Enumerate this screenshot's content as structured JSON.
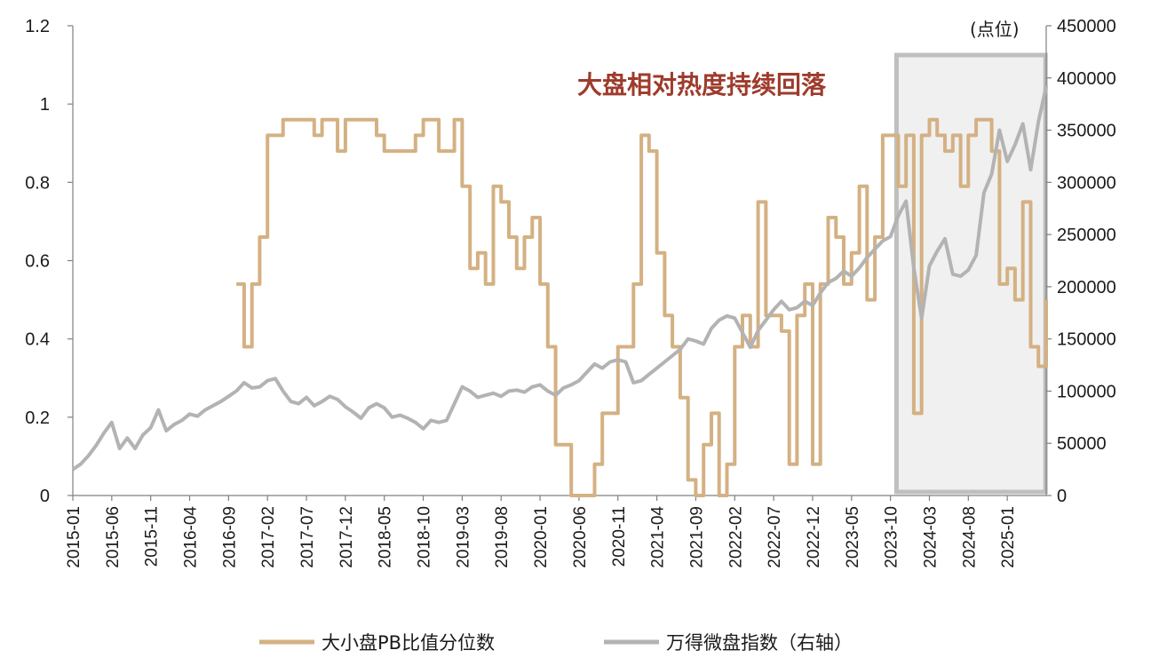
{
  "chart_data": {
    "type": "line",
    "annotation": "大盘相对热度持续回落",
    "y2_unit_label": "(点位)",
    "y_left": {
      "min": 0,
      "max": 1.2,
      "ticks": [
        "0",
        "0.2",
        "0.4",
        "0.6",
        "0.8",
        "1",
        "1.2"
      ]
    },
    "y_right": {
      "min": 0,
      "max": 450000,
      "ticks": [
        "0",
        "50000",
        "100000",
        "150000",
        "200000",
        "250000",
        "300000",
        "350000",
        "400000",
        "450000"
      ]
    },
    "x_range": [
      "2015-01",
      "2025-06"
    ],
    "x_ticks": [
      "2015-01",
      "2015-06",
      "2015-11",
      "2016-04",
      "2016-09",
      "2017-02",
      "2017-07",
      "2017-12",
      "2018-05",
      "2018-10",
      "2019-03",
      "2019-08",
      "2020-01",
      "2020-06",
      "2020-11",
      "2021-04",
      "2021-09",
      "2022-02",
      "2022-07",
      "2022-12",
      "2023-05",
      "2023-10",
      "2024-03",
      "2024-08",
      "2025-01"
    ],
    "highlight_range": [
      "2023-11",
      "2025-05"
    ],
    "colors": {
      "pb": "#d4b183",
      "micro": "#b3b3b3",
      "highlight_fill": "#f0f0f0",
      "highlight_border": "#bfbfbf",
      "annotation": "#9e3b2c"
    },
    "series": [
      {
        "name": "大小盘PB比值分位数",
        "axis": "left",
        "step": true,
        "points": [
          [
            "2016-10",
            0.54
          ],
          [
            "2016-11",
            0.38
          ],
          [
            "2016-12",
            0.54
          ],
          [
            "2017-01",
            0.66
          ],
          [
            "2017-02",
            0.92
          ],
          [
            "2017-03",
            0.92
          ],
          [
            "2017-04",
            0.96
          ],
          [
            "2017-05",
            0.96
          ],
          [
            "2017-06",
            0.96
          ],
          [
            "2017-07",
            0.96
          ],
          [
            "2017-08",
            0.92
          ],
          [
            "2017-09",
            0.96
          ],
          [
            "2017-10",
            0.96
          ],
          [
            "2017-11",
            0.88
          ],
          [
            "2017-12",
            0.96
          ],
          [
            "2018-01",
            0.96
          ],
          [
            "2018-02",
            0.96
          ],
          [
            "2018-03",
            0.96
          ],
          [
            "2018-04",
            0.92
          ],
          [
            "2018-05",
            0.88
          ],
          [
            "2018-06",
            0.88
          ],
          [
            "2018-07",
            0.88
          ],
          [
            "2018-08",
            0.88
          ],
          [
            "2018-09",
            0.92
          ],
          [
            "2018-10",
            0.96
          ],
          [
            "2018-11",
            0.96
          ],
          [
            "2018-12",
            0.88
          ],
          [
            "2019-01",
            0.88
          ],
          [
            "2019-02",
            0.96
          ],
          [
            "2019-03",
            0.79
          ],
          [
            "2019-04",
            0.58
          ],
          [
            "2019-05",
            0.62
          ],
          [
            "2019-06",
            0.54
          ],
          [
            "2019-07",
            0.79
          ],
          [
            "2019-08",
            0.75
          ],
          [
            "2019-09",
            0.66
          ],
          [
            "2019-10",
            0.58
          ],
          [
            "2019-11",
            0.66
          ],
          [
            "2019-12",
            0.71
          ],
          [
            "2020-01",
            0.54
          ],
          [
            "2020-02",
            0.38
          ],
          [
            "2020-03",
            0.13
          ],
          [
            "2020-04",
            0.13
          ],
          [
            "2020-05",
            0.0
          ],
          [
            "2020-06",
            0.0
          ],
          [
            "2020-07",
            0.0
          ],
          [
            "2020-08",
            0.08
          ],
          [
            "2020-09",
            0.21
          ],
          [
            "2020-10",
            0.21
          ],
          [
            "2020-11",
            0.38
          ],
          [
            "2020-12",
            0.38
          ],
          [
            "2021-01",
            0.54
          ],
          [
            "2021-02",
            0.92
          ],
          [
            "2021-03",
            0.88
          ],
          [
            "2021-04",
            0.62
          ],
          [
            "2021-05",
            0.46
          ],
          [
            "2021-06",
            0.38
          ],
          [
            "2021-07",
            0.25
          ],
          [
            "2021-08",
            0.04
          ],
          [
            "2021-09",
            0.0
          ],
          [
            "2021-10",
            0.13
          ],
          [
            "2021-11",
            0.21
          ],
          [
            "2021-12",
            0.0
          ],
          [
            "2022-01",
            0.08
          ],
          [
            "2022-02",
            0.38
          ],
          [
            "2022-03",
            0.46
          ],
          [
            "2022-04",
            0.38
          ],
          [
            "2022-05",
            0.75
          ],
          [
            "2022-06",
            0.46
          ],
          [
            "2022-07",
            0.46
          ],
          [
            "2022-08",
            0.42
          ],
          [
            "2022-09",
            0.08
          ],
          [
            "2022-10",
            0.46
          ],
          [
            "2022-11",
            0.54
          ],
          [
            "2022-12",
            0.08
          ],
          [
            "2023-01",
            0.54
          ],
          [
            "2023-02",
            0.71
          ],
          [
            "2023-03",
            0.66
          ],
          [
            "2023-04",
            0.54
          ],
          [
            "2023-05",
            0.62
          ],
          [
            "2023-06",
            0.79
          ],
          [
            "2023-07",
            0.5
          ],
          [
            "2023-08",
            0.66
          ],
          [
            "2023-09",
            0.92
          ],
          [
            "2023-10",
            0.92
          ],
          [
            "2023-11",
            0.79
          ],
          [
            "2023-12",
            0.92
          ],
          [
            "2024-01",
            0.21
          ],
          [
            "2024-02",
            0.92
          ],
          [
            "2024-03",
            0.96
          ],
          [
            "2024-04",
            0.92
          ],
          [
            "2024-05",
            0.88
          ],
          [
            "2024-06",
            0.92
          ],
          [
            "2024-07",
            0.79
          ],
          [
            "2024-08",
            0.92
          ],
          [
            "2024-09",
            0.96
          ],
          [
            "2024-10",
            0.96
          ],
          [
            "2024-11",
            0.88
          ],
          [
            "2024-12",
            0.54
          ],
          [
            "2025-01",
            0.58
          ],
          [
            "2025-02",
            0.5
          ],
          [
            "2025-03",
            0.75
          ],
          [
            "2025-04",
            0.38
          ],
          [
            "2025-05",
            0.33
          ],
          [
            "2025-06",
            0.5
          ]
        ]
      },
      {
        "name": "万得微盘指数（右轴）",
        "axis": "right",
        "step": false,
        "points": [
          [
            "2015-01",
            25000
          ],
          [
            "2015-02",
            30000
          ],
          [
            "2015-03",
            38000
          ],
          [
            "2015-04",
            48000
          ],
          [
            "2015-05",
            60000
          ],
          [
            "2015-06",
            70000
          ],
          [
            "2015-07",
            45000
          ],
          [
            "2015-08",
            55000
          ],
          [
            "2015-09",
            45000
          ],
          [
            "2015-10",
            58000
          ],
          [
            "2015-11",
            65000
          ],
          [
            "2015-12",
            82000
          ],
          [
            "2016-01",
            62000
          ],
          [
            "2016-02",
            68000
          ],
          [
            "2016-03",
            72000
          ],
          [
            "2016-04",
            78000
          ],
          [
            "2016-05",
            76000
          ],
          [
            "2016-06",
            82000
          ],
          [
            "2016-07",
            86000
          ],
          [
            "2016-08",
            90000
          ],
          [
            "2016-09",
            95000
          ],
          [
            "2016-10",
            100000
          ],
          [
            "2016-11",
            108000
          ],
          [
            "2016-12",
            103000
          ],
          [
            "2017-01",
            104000
          ],
          [
            "2017-02",
            110000
          ],
          [
            "2017-03",
            112000
          ],
          [
            "2017-04",
            100000
          ],
          [
            "2017-05",
            90000
          ],
          [
            "2017-06",
            88000
          ],
          [
            "2017-07",
            94000
          ],
          [
            "2017-08",
            86000
          ],
          [
            "2017-09",
            90000
          ],
          [
            "2017-10",
            95000
          ],
          [
            "2017-11",
            92000
          ],
          [
            "2017-12",
            85000
          ],
          [
            "2018-01",
            80000
          ],
          [
            "2018-02",
            74000
          ],
          [
            "2018-03",
            84000
          ],
          [
            "2018-04",
            88000
          ],
          [
            "2018-05",
            84000
          ],
          [
            "2018-06",
            75000
          ],
          [
            "2018-07",
            77000
          ],
          [
            "2018-08",
            74000
          ],
          [
            "2018-09",
            70000
          ],
          [
            "2018-10",
            64000
          ],
          [
            "2018-11",
            72000
          ],
          [
            "2018-12",
            70000
          ],
          [
            "2019-01",
            72000
          ],
          [
            "2019-02",
            88000
          ],
          [
            "2019-03",
            104000
          ],
          [
            "2019-04",
            100000
          ],
          [
            "2019-05",
            94000
          ],
          [
            "2019-06",
            96000
          ],
          [
            "2019-07",
            98000
          ],
          [
            "2019-08",
            95000
          ],
          [
            "2019-09",
            100000
          ],
          [
            "2019-10",
            101000
          ],
          [
            "2019-11",
            99000
          ],
          [
            "2019-12",
            104000
          ],
          [
            "2020-01",
            106000
          ],
          [
            "2020-02",
            100000
          ],
          [
            "2020-03",
            96000
          ],
          [
            "2020-04",
            103000
          ],
          [
            "2020-05",
            106000
          ],
          [
            "2020-06",
            110000
          ],
          [
            "2020-07",
            118000
          ],
          [
            "2020-08",
            126000
          ],
          [
            "2020-09",
            122000
          ],
          [
            "2020-10",
            128000
          ],
          [
            "2020-11",
            130000
          ],
          [
            "2020-12",
            128000
          ],
          [
            "2021-01",
            108000
          ],
          [
            "2021-02",
            110000
          ],
          [
            "2021-03",
            116000
          ],
          [
            "2021-04",
            122000
          ],
          [
            "2021-05",
            128000
          ],
          [
            "2021-06",
            134000
          ],
          [
            "2021-07",
            140000
          ],
          [
            "2021-08",
            150000
          ],
          [
            "2021-09",
            148000
          ],
          [
            "2021-10",
            145000
          ],
          [
            "2021-11",
            160000
          ],
          [
            "2021-12",
            168000
          ],
          [
            "2022-01",
            172000
          ],
          [
            "2022-02",
            170000
          ],
          [
            "2022-03",
            156000
          ],
          [
            "2022-04",
            142000
          ],
          [
            "2022-05",
            158000
          ],
          [
            "2022-06",
            168000
          ],
          [
            "2022-07",
            178000
          ],
          [
            "2022-08",
            186000
          ],
          [
            "2022-09",
            178000
          ],
          [
            "2022-10",
            180000
          ],
          [
            "2022-11",
            186000
          ],
          [
            "2022-12",
            182000
          ],
          [
            "2023-01",
            194000
          ],
          [
            "2023-02",
            204000
          ],
          [
            "2023-03",
            208000
          ],
          [
            "2023-04",
            215000
          ],
          [
            "2023-05",
            210000
          ],
          [
            "2023-06",
            218000
          ],
          [
            "2023-07",
            228000
          ],
          [
            "2023-08",
            236000
          ],
          [
            "2023-09",
            244000
          ],
          [
            "2023-10",
            248000
          ],
          [
            "2023-11",
            268000
          ],
          [
            "2023-12",
            282000
          ],
          [
            "2024-01",
            218000
          ],
          [
            "2024-02",
            170000
          ],
          [
            "2024-03",
            220000
          ],
          [
            "2024-04",
            234000
          ],
          [
            "2024-05",
            246000
          ],
          [
            "2024-06",
            212000
          ],
          [
            "2024-07",
            210000
          ],
          [
            "2024-08",
            216000
          ],
          [
            "2024-09",
            230000
          ],
          [
            "2024-10",
            290000
          ],
          [
            "2024-11",
            308000
          ],
          [
            "2024-12",
            350000
          ],
          [
            "2025-01",
            320000
          ],
          [
            "2025-02",
            336000
          ],
          [
            "2025-03",
            356000
          ],
          [
            "2025-04",
            312000
          ],
          [
            "2025-05",
            358000
          ],
          [
            "2025-06",
            392000
          ]
        ]
      }
    ]
  }
}
